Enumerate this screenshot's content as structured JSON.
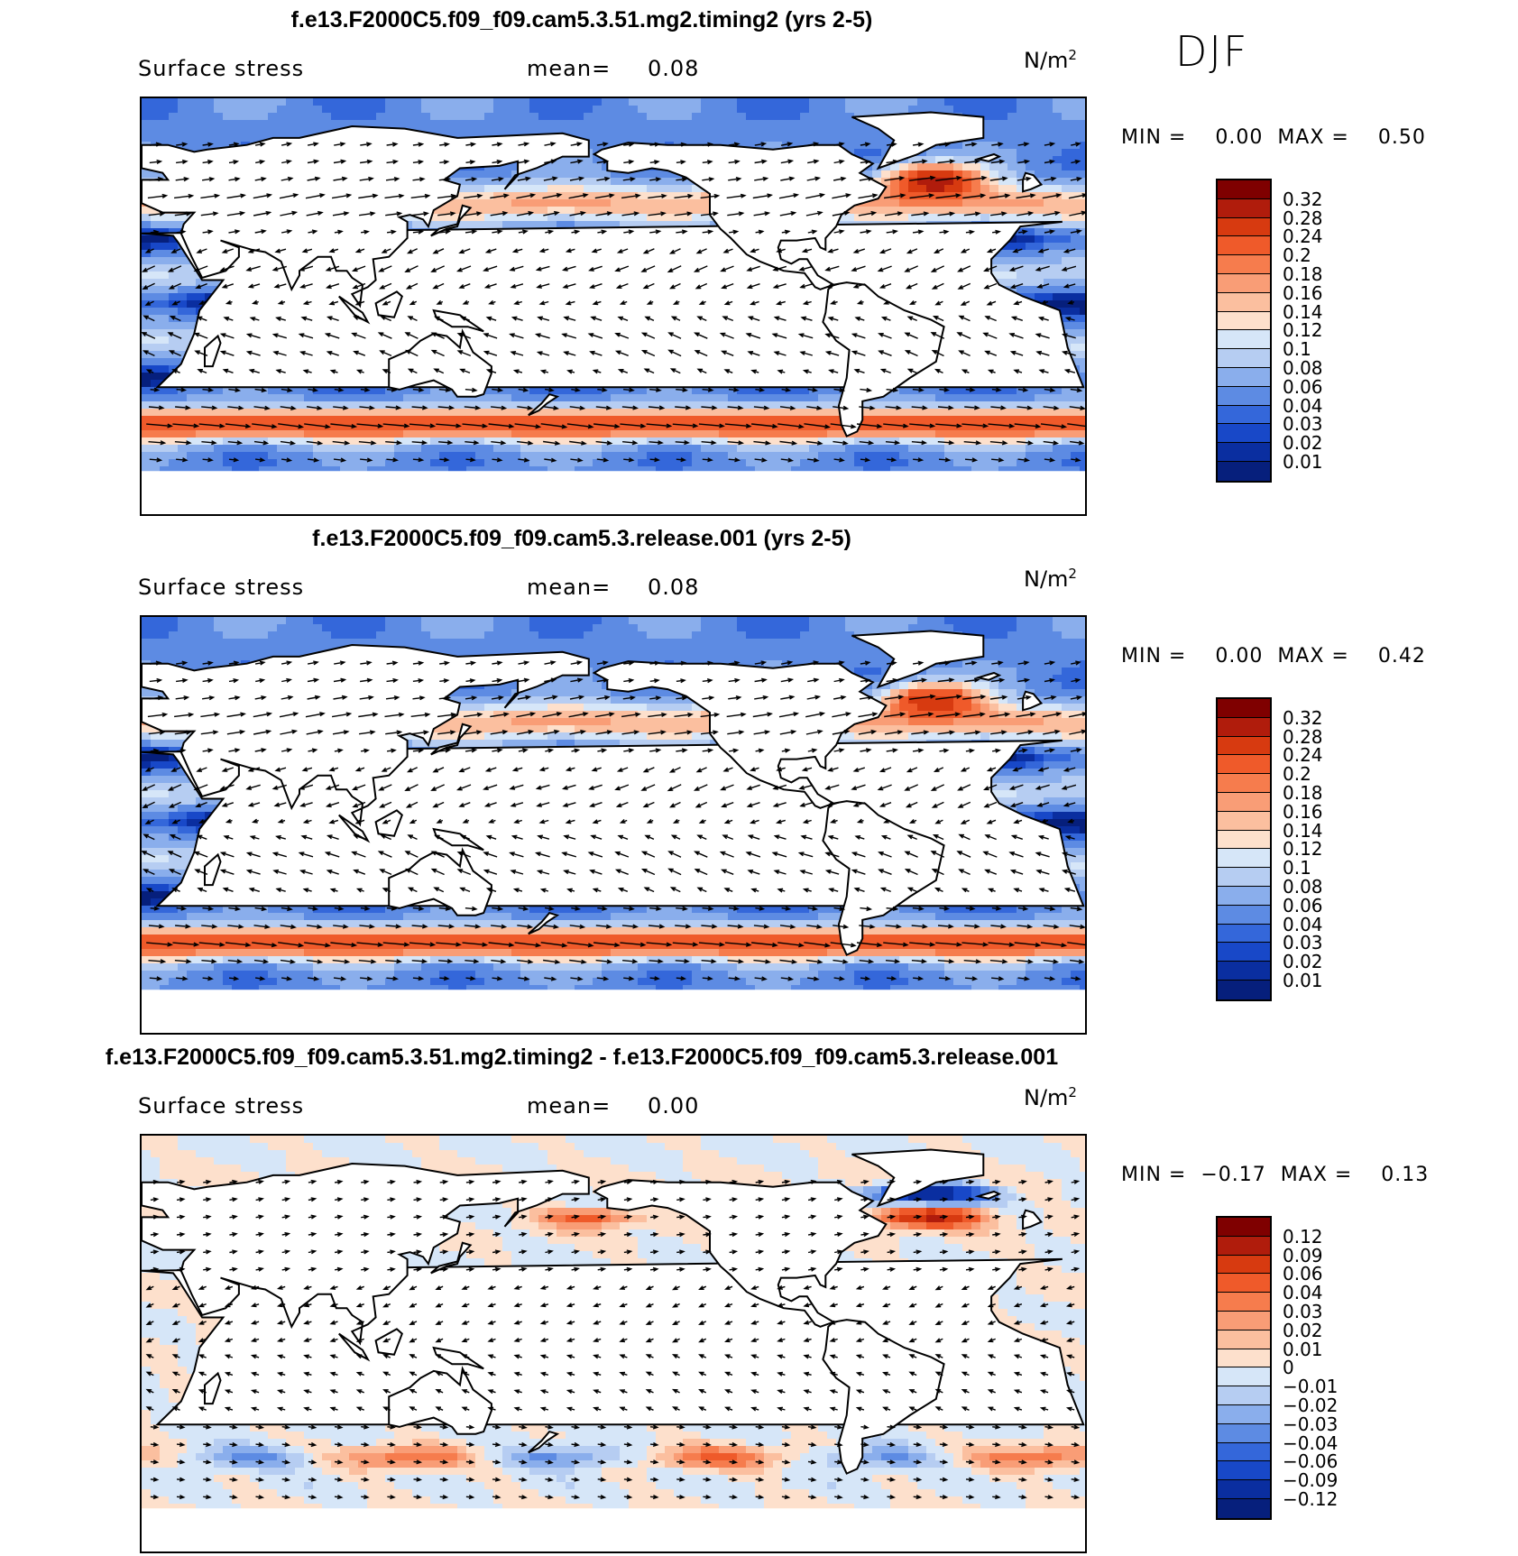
{
  "season": "DJF",
  "panels": [
    {
      "title": "f.e13.F2000C5.f09_f09.cam5.3.51.mg2.timing2 (yrs 2-5)",
      "variable": "Surface stress",
      "mean_label": "mean=",
      "mean_value": "0.08",
      "units": "N/m",
      "units_power": "2",
      "min_label": "MIN =",
      "min_value": "0.00",
      "max_label": "MAX =",
      "max_value": "0.50",
      "colorbar": {
        "labels": [
          "0.32",
          "0.28",
          "0.24",
          "0.2",
          "0.18",
          "0.16",
          "0.14",
          "0.12",
          "0.1",
          "0.08",
          "0.06",
          "0.04",
          "0.03",
          "0.02",
          "0.01"
        ],
        "colors": [
          "#7f0000",
          "#b01c0c",
          "#d73a10",
          "#ef5a2a",
          "#f67c4d",
          "#f99d76",
          "#fbbf9f",
          "#fde0cc",
          "#d6e6f8",
          "#b6cdf2",
          "#8aaeec",
          "#5d8be3",
          "#3467da",
          "#1848c8",
          "#0a2ea0",
          "#061f7c"
        ]
      },
      "field": "mean"
    },
    {
      "title": "f.e13.F2000C5.f09_f09.cam5.3.release.001 (yrs 2-5)",
      "variable": "Surface stress",
      "mean_label": "mean=",
      "mean_value": "0.08",
      "units": "N/m",
      "units_power": "2",
      "min_label": "MIN =",
      "min_value": "0.00",
      "max_label": "MAX =",
      "max_value": "0.42",
      "colorbar": {
        "labels": [
          "0.32",
          "0.28",
          "0.24",
          "0.2",
          "0.18",
          "0.16",
          "0.14",
          "0.12",
          "0.1",
          "0.08",
          "0.06",
          "0.04",
          "0.03",
          "0.02",
          "0.01"
        ],
        "colors": [
          "#7f0000",
          "#b01c0c",
          "#d73a10",
          "#ef5a2a",
          "#f67c4d",
          "#f99d76",
          "#fbbf9f",
          "#fde0cc",
          "#d6e6f8",
          "#b6cdf2",
          "#8aaeec",
          "#5d8be3",
          "#3467da",
          "#1848c8",
          "#0a2ea0",
          "#061f7c"
        ]
      },
      "field": "mean"
    },
    {
      "title": "f.e13.F2000C5.f09_f09.cam5.3.51.mg2.timing2 - f.e13.F2000C5.f09_f09.cam5.3.release.001",
      "variable": "Surface stress",
      "mean_label": "mean=",
      "mean_value": "0.00",
      "units": "N/m",
      "units_power": "2",
      "min_label": "MIN =",
      "min_value": "−0.17",
      "max_label": "MAX =",
      "max_value": "0.13",
      "colorbar": {
        "labels": [
          "0.12",
          "0.09",
          "0.06",
          "0.04",
          "0.03",
          "0.02",
          "0.01",
          "0",
          "−0.01",
          "−0.02",
          "−0.03",
          "−0.04",
          "−0.06",
          "−0.09",
          "−0.12"
        ],
        "colors": [
          "#7f0000",
          "#b01c0c",
          "#d73a10",
          "#ef5a2a",
          "#f67c4d",
          "#f99d76",
          "#fbbf9f",
          "#fde0cc",
          "#d6e6f8",
          "#b6cdf2",
          "#8aaeec",
          "#5d8be3",
          "#3467da",
          "#1848c8",
          "#0a2ea0",
          "#061f7c"
        ]
      },
      "field": "diff"
    }
  ]
}
